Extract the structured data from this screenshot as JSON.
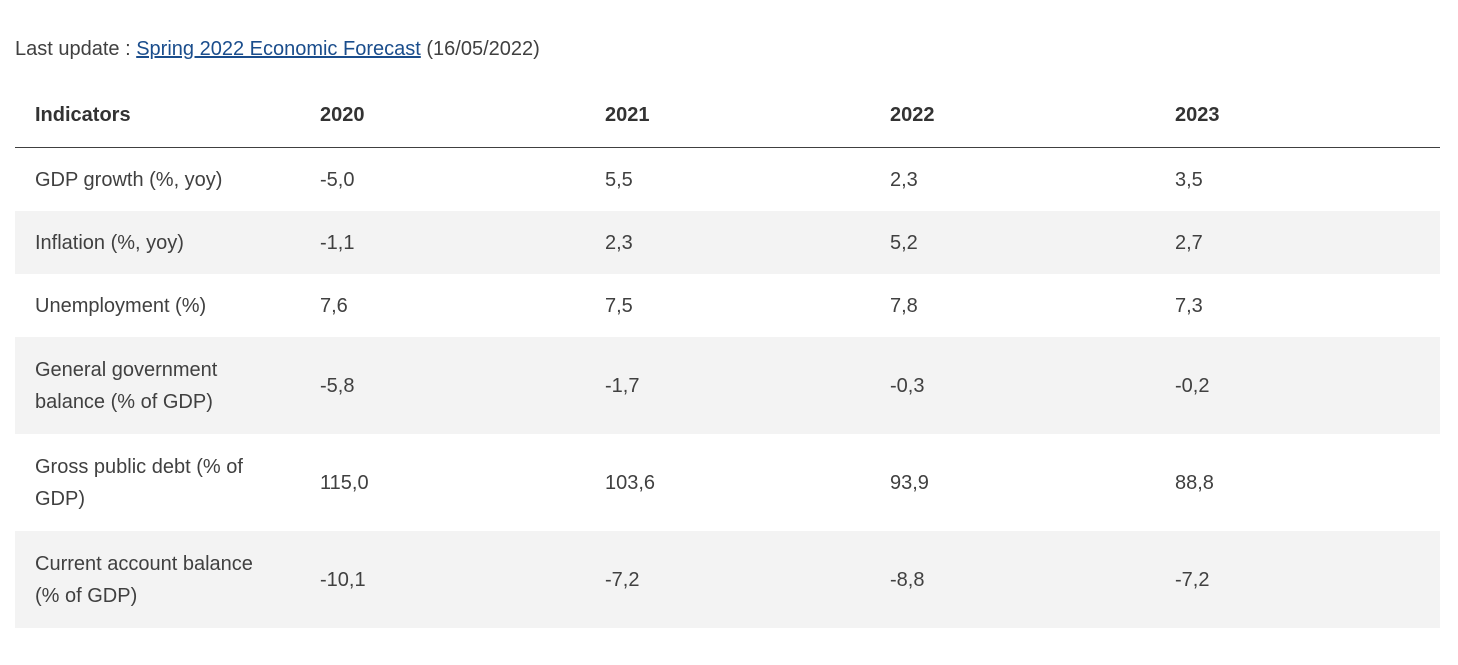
{
  "update": {
    "prefix": "Last update : ",
    "link_text": "Spring 2022 Economic Forecast",
    "suffix": " (16/05/2022)"
  },
  "table": {
    "headers": [
      "Indicators",
      "2020",
      "2021",
      "2022",
      "2023"
    ],
    "rows": [
      {
        "indicator": "GDP growth (%, yoy)",
        "values": [
          "-5,0",
          "5,5",
          "2,3",
          "3,5"
        ]
      },
      {
        "indicator": "Inflation (%, yoy)",
        "values": [
          "-1,1",
          "2,3",
          "5,2",
          "2,7"
        ]
      },
      {
        "indicator": "Unemployment (%)",
        "values": [
          "7,6",
          "7,5",
          "7,8",
          "7,3"
        ]
      },
      {
        "indicator": "General government balance (% of GDP)",
        "values": [
          "-5,8",
          "-1,7",
          "-0,3",
          "-0,2"
        ]
      },
      {
        "indicator": "Gross public debt (% of GDP)",
        "values": [
          "115,0",
          "103,6",
          "93,9",
          "88,8"
        ]
      },
      {
        "indicator": "Current account balance (% of GDP)",
        "values": [
          "-10,1",
          "-7,2",
          "-8,8",
          "-7,2"
        ]
      }
    ]
  },
  "colors": {
    "link": "#1a4d8c",
    "text": "#404040",
    "stripe": "#f3f3f3",
    "header_rule": "#404040"
  }
}
